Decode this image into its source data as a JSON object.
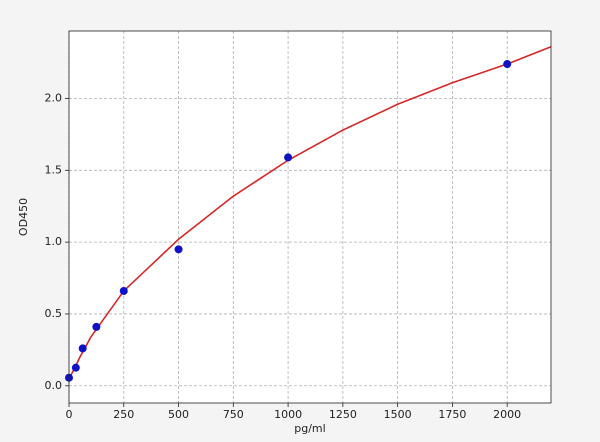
{
  "chart_data": {
    "type": "scatter",
    "xlabel": "pg/ml",
    "ylabel": "OD450",
    "xlim": [
      0,
      2200
    ],
    "ylim": [
      -0.12,
      2.47
    ],
    "xticks": [
      0,
      250,
      500,
      750,
      1000,
      1250,
      1500,
      1750,
      2000
    ],
    "yticks": [
      {
        "value": 0,
        "label": "0.0"
      },
      0.5,
      {
        "value": 1,
        "label": "1.0"
      },
      1.5,
      {
        "value": 2,
        "label": "2.0"
      }
    ],
    "grid": true,
    "series": [
      {
        "type": "scatter",
        "color": "#1010c8",
        "x": [
          0,
          31.25,
          62.5,
          125,
          250,
          500,
          1000,
          2000
        ],
        "values": [
          0.056,
          0.126,
          0.26,
          0.41,
          0.66,
          0.95,
          1.59,
          2.24
        ]
      },
      {
        "type": "line",
        "color": "#d62728",
        "x": [
          0,
          25,
          50,
          100,
          250,
          500,
          750,
          1000,
          1250,
          1500,
          1750,
          2000,
          2200
        ],
        "values": [
          0.05,
          0.12,
          0.2,
          0.34,
          0.66,
          1.02,
          1.32,
          1.57,
          1.78,
          1.96,
          2.11,
          2.24,
          2.36
        ]
      }
    ]
  }
}
